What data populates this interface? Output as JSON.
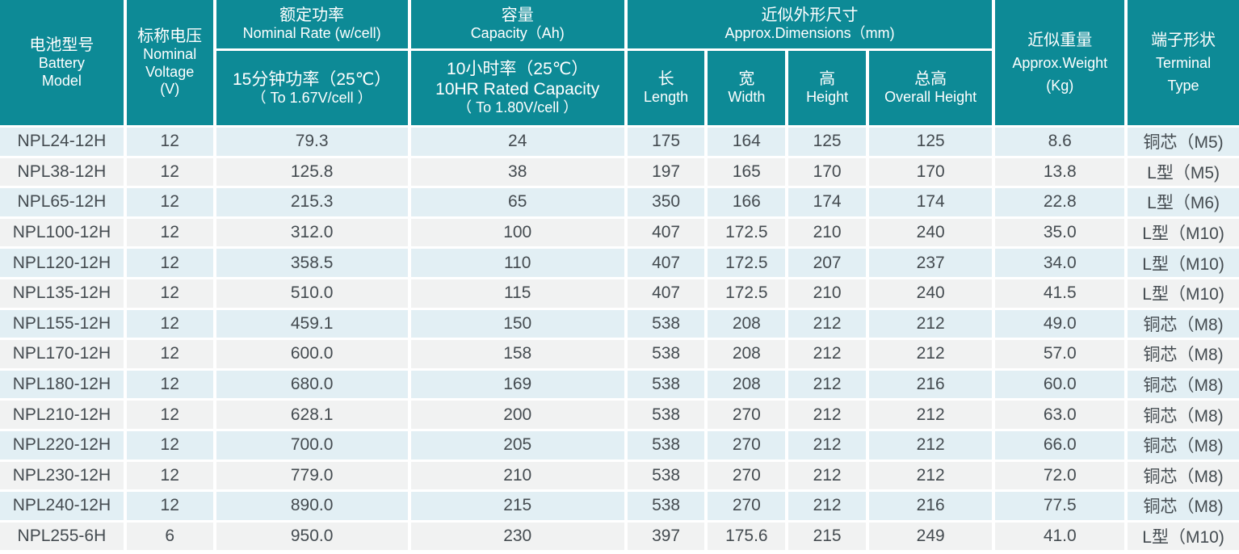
{
  "header": {
    "model": {
      "cn": "电池型号",
      "en1": "Battery",
      "en2": "Model"
    },
    "voltage": {
      "cn": "标称电压",
      "en1": "Nominal",
      "en2": "Voltage",
      "unit": "(V)"
    },
    "power": {
      "cn": "额定功率",
      "en": "Nominal Rate (w/cell)",
      "sub_cn": "15分钟功率（25℃）",
      "sub_en": "（ To 1.67V/cell ）"
    },
    "capacity": {
      "cn": "容量",
      "en": "Capacity（Ah)",
      "sub_cn": "10小时率（25℃）",
      "sub_en": "10HR Rated Capacity",
      "sub_note": "（ To 1.80V/cell ）"
    },
    "dimensions": {
      "cn": "近似外形尺寸",
      "en": "Approx.Dimensions（mm)"
    },
    "length": {
      "cn": "长",
      "en": "Length"
    },
    "width": {
      "cn": "宽",
      "en": "Width"
    },
    "height": {
      "cn": "高",
      "en": "Height"
    },
    "overall": {
      "cn": "总高",
      "en": "Overall Height"
    },
    "weight": {
      "cn": "近似重量",
      "en": "Approx.Weight",
      "unit": "(Kg)"
    },
    "terminal": {
      "cn": "端子形状",
      "en1": "Terminal",
      "en2": "Type"
    }
  },
  "rows": [
    {
      "model": "NPL24-12H",
      "voltage": "12",
      "power": "79.3",
      "capacity": "24",
      "length": "175",
      "width": "164",
      "height": "125",
      "overall": "125",
      "weight": "8.6",
      "terminal": "铜芯（M5)"
    },
    {
      "model": "NPL38-12H",
      "voltage": "12",
      "power": "125.8",
      "capacity": "38",
      "length": "197",
      "width": "165",
      "height": "170",
      "overall": "170",
      "weight": "13.8",
      "terminal": "L型（M5)"
    },
    {
      "model": "NPL65-12H",
      "voltage": "12",
      "power": "215.3",
      "capacity": "65",
      "length": "350",
      "width": "166",
      "height": "174",
      "overall": "174",
      "weight": "22.8",
      "terminal": "L型（M6)"
    },
    {
      "model": "NPL100-12H",
      "voltage": "12",
      "power": "312.0",
      "capacity": "100",
      "length": "407",
      "width": "172.5",
      "height": "210",
      "overall": "240",
      "weight": "35.0",
      "terminal": "L型（M10)"
    },
    {
      "model": "NPL120-12H",
      "voltage": "12",
      "power": "358.5",
      "capacity": "110",
      "length": "407",
      "width": "172.5",
      "height": "207",
      "overall": "237",
      "weight": "34.0",
      "terminal": "L型（M10)"
    },
    {
      "model": "NPL135-12H",
      "voltage": "12",
      "power": "510.0",
      "capacity": "115",
      "length": "407",
      "width": "172.5",
      "height": "210",
      "overall": "240",
      "weight": "41.5",
      "terminal": "L型（M10)"
    },
    {
      "model": "NPL155-12H",
      "voltage": "12",
      "power": "459.1",
      "capacity": "150",
      "length": "538",
      "width": "208",
      "height": "212",
      "overall": "212",
      "weight": "49.0",
      "terminal": "铜芯（M8)"
    },
    {
      "model": "NPL170-12H",
      "voltage": "12",
      "power": "600.0",
      "capacity": "158",
      "length": "538",
      "width": "208",
      "height": "212",
      "overall": "212",
      "weight": "57.0",
      "terminal": "铜芯（M8)"
    },
    {
      "model": "NPL180-12H",
      "voltage": "12",
      "power": "680.0",
      "capacity": "169",
      "length": "538",
      "width": "208",
      "height": "212",
      "overall": "216",
      "weight": "60.0",
      "terminal": "铜芯（M8)"
    },
    {
      "model": "NPL210-12H",
      "voltage": "12",
      "power": "628.1",
      "capacity": "200",
      "length": "538",
      "width": "270",
      "height": "212",
      "overall": "212",
      "weight": "63.0",
      "terminal": "铜芯（M8)"
    },
    {
      "model": "NPL220-12H",
      "voltage": "12",
      "power": "700.0",
      "capacity": "205",
      "length": "538",
      "width": "270",
      "height": "212",
      "overall": "212",
      "weight": "66.0",
      "terminal": "铜芯（M8)"
    },
    {
      "model": "NPL230-12H",
      "voltage": "12",
      "power": "779.0",
      "capacity": "210",
      "length": "538",
      "width": "270",
      "height": "212",
      "overall": "212",
      "weight": "72.0",
      "terminal": "铜芯（M8)"
    },
    {
      "model": "NPL240-12H",
      "voltage": "12",
      "power": "890.0",
      "capacity": "215",
      "length": "538",
      "width": "270",
      "height": "212",
      "overall": "216",
      "weight": "77.5",
      "terminal": "铜芯（M8)"
    },
    {
      "model": "NPL255-6H",
      "voltage": "6",
      "power": "950.0",
      "capacity": "230",
      "length": "397",
      "width": "175.6",
      "height": "215",
      "overall": "249",
      "weight": "41.0",
      "terminal": "L型（M10)"
    }
  ],
  "colors": {
    "header_bg": "#0d8a96",
    "row_odd": "#e2eff4",
    "row_even": "#f1f2f2",
    "text": "#444b50"
  }
}
